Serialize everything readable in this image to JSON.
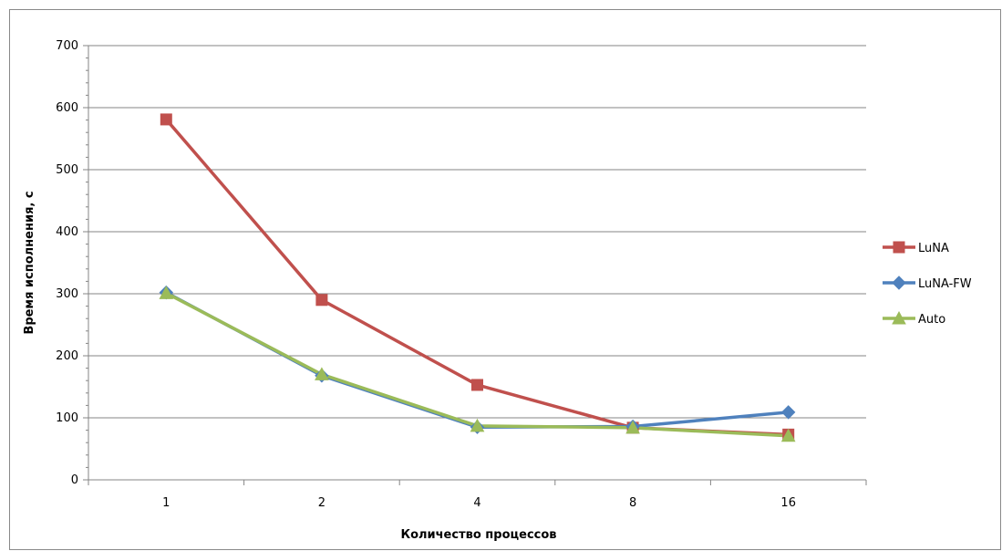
{
  "chart_data": {
    "type": "line",
    "title": "",
    "xlabel": "Количество процессов",
    "ylabel": "Время исполнения, с",
    "categories": [
      "1",
      "2",
      "4",
      "8",
      "16"
    ],
    "ylim": [
      0,
      700
    ],
    "yticks": [
      0,
      100,
      200,
      300,
      400,
      500,
      600,
      700
    ],
    "grid": "horizontal",
    "legend": "right",
    "series": [
      {
        "name": "LuNA",
        "values": [
          581,
          290,
          153,
          84,
          73
        ],
        "color": "#c0504d",
        "marker": "square"
      },
      {
        "name": "LuNA-FW",
        "values": [
          302,
          168,
          85,
          86,
          109
        ],
        "color": "#4f81bd",
        "marker": "diamond"
      },
      {
        "name": "Auto",
        "values": [
          301,
          170,
          87,
          84,
          71
        ],
        "color": "#9bbb59",
        "marker": "triangle"
      }
    ]
  }
}
